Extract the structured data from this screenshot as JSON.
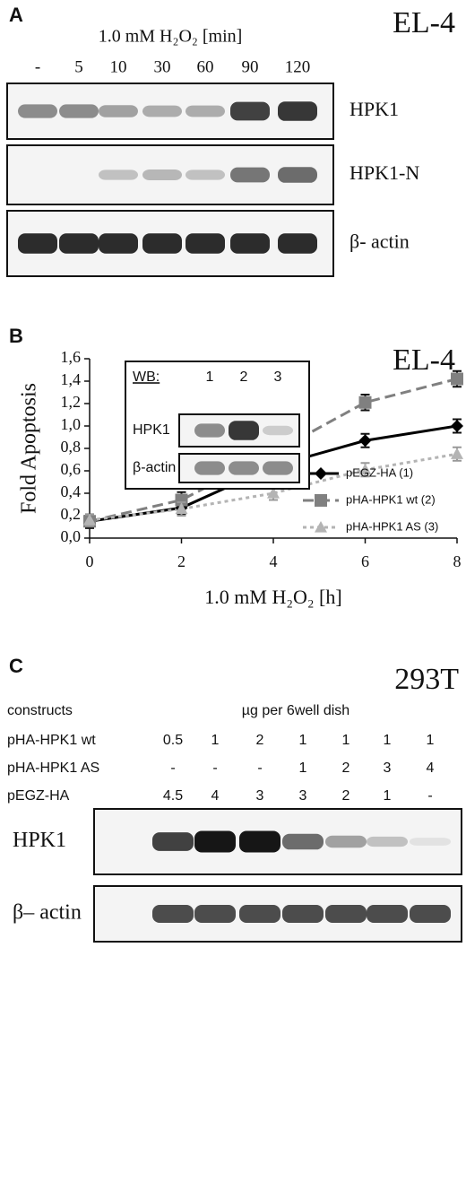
{
  "panel_a": {
    "label": "A",
    "cell_line": "EL-4",
    "treatment": "1.0 mM H₂O₂  [min]",
    "lanes": [
      "-",
      "5",
      "10",
      "30",
      "60",
      "90",
      "120"
    ],
    "blots": [
      "HPK1",
      "HPK1-N",
      "β- actin"
    ]
  },
  "chart_data": {
    "type": "line",
    "panel_label": "B",
    "title": "EL-4",
    "xlabel": "1.0 mM H₂O₂ [h]",
    "ylabel": "Fold Apoptosis",
    "x": [
      0,
      2,
      4,
      6,
      8
    ],
    "xlim": [
      0,
      8
    ],
    "xticks": [
      0,
      2,
      4,
      6,
      8
    ],
    "ylim": [
      0,
      1.6
    ],
    "yticks": [
      {
        "value": 0,
        "label": "0,0"
      },
      {
        "value": 0.2,
        "label": "0,2"
      },
      {
        "value": 0.4,
        "label": "0,4"
      },
      {
        "value": 0.6,
        "label": "0,6"
      },
      {
        "value": 0.8,
        "label": "0,8"
      },
      {
        "value": 1.0,
        "label": "1,0"
      },
      {
        "value": 1.2,
        "label": "1,2"
      },
      {
        "value": 1.4,
        "label": "1,4"
      },
      {
        "value": 1.6,
        "label": "1,6"
      }
    ],
    "legend": "lower right",
    "series": [
      {
        "name": "pEGZ-HA (1)",
        "color": "#000000",
        "marker": "diamond",
        "linestyle": "solid",
        "values": [
          0.15,
          0.27,
          0.64,
          0.87,
          1.0
        ],
        "errors": [
          0.06,
          0.06,
          0.06,
          0.06,
          0.06
        ]
      },
      {
        "name": "pHA-HPK1 wt (2)",
        "color": "#808080",
        "marker": "square",
        "linestyle": "dashed",
        "values": [
          0.15,
          0.34,
          0.76,
          1.21,
          1.42
        ],
        "errors": [
          0.06,
          0.07,
          0.07,
          0.07,
          0.07
        ]
      },
      {
        "name": "pHA-HPK1 AS (3)",
        "color": "#b4b4b4",
        "marker": "triangle",
        "linestyle": "dotted",
        "values": [
          0.16,
          0.26,
          0.4,
          0.61,
          0.75
        ],
        "errors": [
          0.05,
          0.06,
          0.06,
          0.06,
          0.06
        ]
      }
    ],
    "inset": {
      "title": "WB:",
      "lanes": [
        "1",
        "2",
        "3"
      ],
      "blots": [
        "HPK1",
        "β-actin"
      ]
    }
  },
  "panel_c": {
    "label": "C",
    "cell_line": "293T",
    "header": "constructs",
    "unit": "µg per 6well dish",
    "rows": [
      {
        "name": "pHA-HPK1 wt",
        "amounts": [
          "0.5",
          "1",
          "2",
          "1",
          "1",
          "1",
          "1"
        ]
      },
      {
        "name": "pHA-HPK1 AS",
        "amounts": [
          "-",
          "-",
          "-",
          "1",
          "2",
          "3",
          "4"
        ]
      },
      {
        "name": "pEGZ-HA",
        "amounts": [
          "4.5",
          "4",
          "3",
          "3",
          "2",
          "1",
          "-"
        ]
      }
    ],
    "blots": [
      "HPK1",
      "β– actin"
    ]
  }
}
